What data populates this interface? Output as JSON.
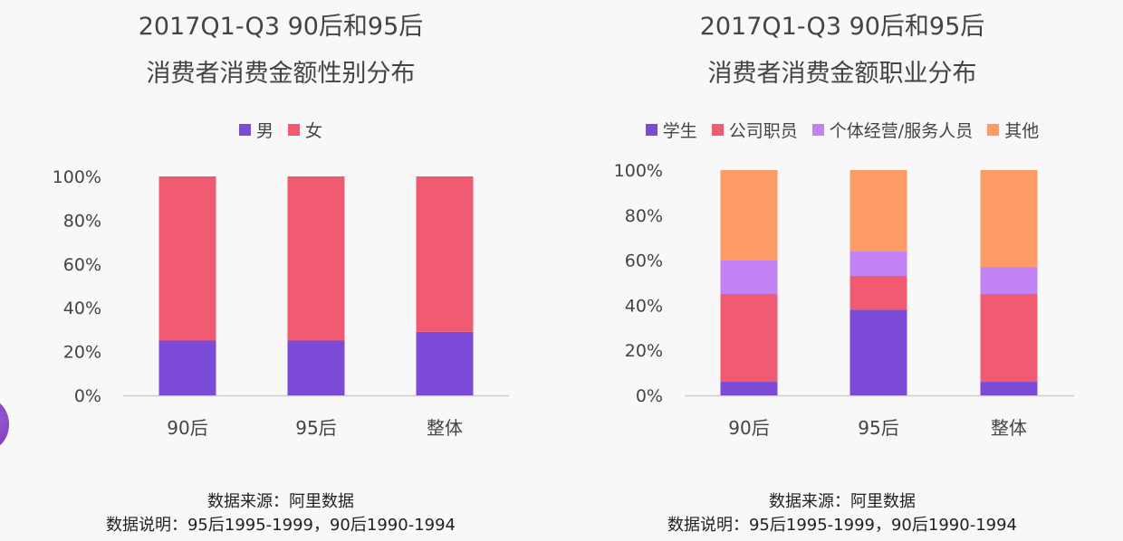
{
  "colors": {
    "purple": "#7b4ad6",
    "red": "#f15b72",
    "lavender": "#c281f4",
    "orange": "#fd9b66",
    "axis": "#cccccc",
    "text": "#444444"
  },
  "left": {
    "title_line1": "2017Q1-Q3 90后和95后",
    "title_line2": "消费者消费金额性别分布",
    "note_line1": "数据来源：阿里数据",
    "note_line2": "数据说明：95后1995-1999，90后1990-1994"
  },
  "right": {
    "title_line1": "2017Q1-Q3 90后和95后",
    "title_line2": "消费者消费金额职业分布",
    "note_line1": "数据来源：阿里数据",
    "note_line2": "数据说明：95后1995-1999，90后1990-1994"
  },
  "chart_data": [
    {
      "type": "bar",
      "stacked": true,
      "title": "2017Q1-Q3 90后和95后 消费者消费金额性别分布",
      "categories": [
        "90后",
        "95后",
        "整体"
      ],
      "series": [
        {
          "name": "男",
          "color": "#7b4ad6",
          "values": [
            25,
            25,
            29
          ]
        },
        {
          "name": "女",
          "color": "#f15b72",
          "values": [
            75,
            75,
            71
          ]
        }
      ],
      "ylim": [
        0,
        100
      ],
      "yticks": [
        "0%",
        "20%",
        "40%",
        "60%",
        "80%",
        "100%"
      ],
      "legend": "top-center",
      "grid": false
    },
    {
      "type": "bar",
      "stacked": true,
      "title": "2017Q1-Q3 90后和95后 消费者消费金额职业分布",
      "categories": [
        "90后",
        "95后",
        "整体"
      ],
      "series": [
        {
          "name": "学生",
          "color": "#7b4ad6",
          "values": [
            6,
            38,
            6
          ]
        },
        {
          "name": "公司职员",
          "color": "#f15b72",
          "values": [
            39,
            15,
            39
          ]
        },
        {
          "name": "个体经营/服务人员",
          "color": "#c281f4",
          "values": [
            15,
            11,
            12
          ]
        },
        {
          "name": "其他",
          "color": "#fd9b66",
          "values": [
            40,
            36,
            43
          ]
        }
      ],
      "ylim": [
        0,
        100
      ],
      "yticks": [
        "0%",
        "20%",
        "40%",
        "60%",
        "80%",
        "100%"
      ],
      "legend": "top-center",
      "grid": false
    }
  ]
}
